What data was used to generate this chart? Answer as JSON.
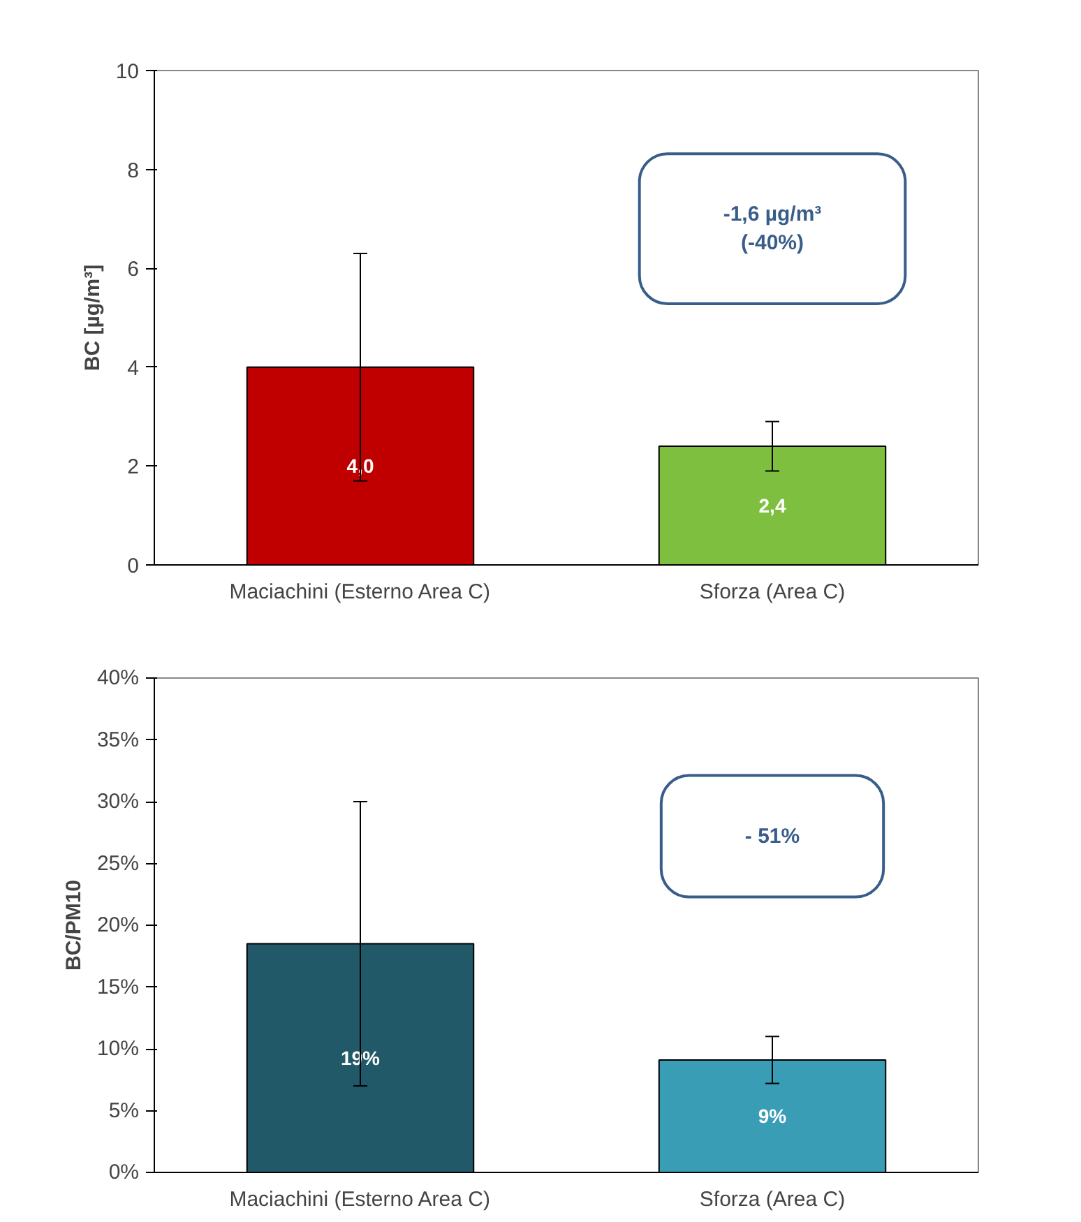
{
  "chart_data": [
    {
      "type": "bar",
      "ylabel": "BC [µg/m³]",
      "categories": [
        "Maciachini (Esterno Area C)",
        "Sforza (Area C)"
      ],
      "values": [
        4.0,
        2.4
      ],
      "colors": [
        "#c00000",
        "#7fbf3f"
      ],
      "errors": [
        [
          1.7,
          6.3
        ],
        [
          1.9,
          2.9
        ]
      ],
      "value_labels": [
        "4,0",
        "2,4"
      ],
      "ylim": [
        0,
        10
      ],
      "yticks": [
        0,
        2,
        4,
        6,
        8,
        10
      ],
      "grid": false,
      "annotations": [
        "-1,6 µg/m³\n(-40%)"
      ]
    },
    {
      "type": "bar",
      "ylabel": "BC/PM10",
      "categories": [
        "Maciachini (Esterno Area C)",
        "Sforza (Area C)"
      ],
      "values": [
        18.5,
        9.1
      ],
      "colors": [
        "#215968",
        "#3a9db6"
      ],
      "errors": [
        [
          7,
          30
        ],
        [
          7.2,
          11
        ]
      ],
      "value_labels": [
        "19%",
        "9%"
      ],
      "ylim": [
        0,
        40
      ],
      "yticks": [
        {
          "value": 0,
          "label": "0%"
        },
        {
          "value": 5,
          "label": "5%"
        },
        {
          "value": 10,
          "label": "10%"
        },
        {
          "value": 15,
          "label": "15%"
        },
        {
          "value": 20,
          "label": "20%"
        },
        {
          "value": 25,
          "label": "25%"
        },
        {
          "value": 30,
          "label": "30%"
        },
        {
          "value": 35,
          "label": "35%"
        },
        {
          "value": 40,
          "label": "40%"
        }
      ],
      "grid": false,
      "annotations": [
        "- 51%"
      ]
    }
  ]
}
